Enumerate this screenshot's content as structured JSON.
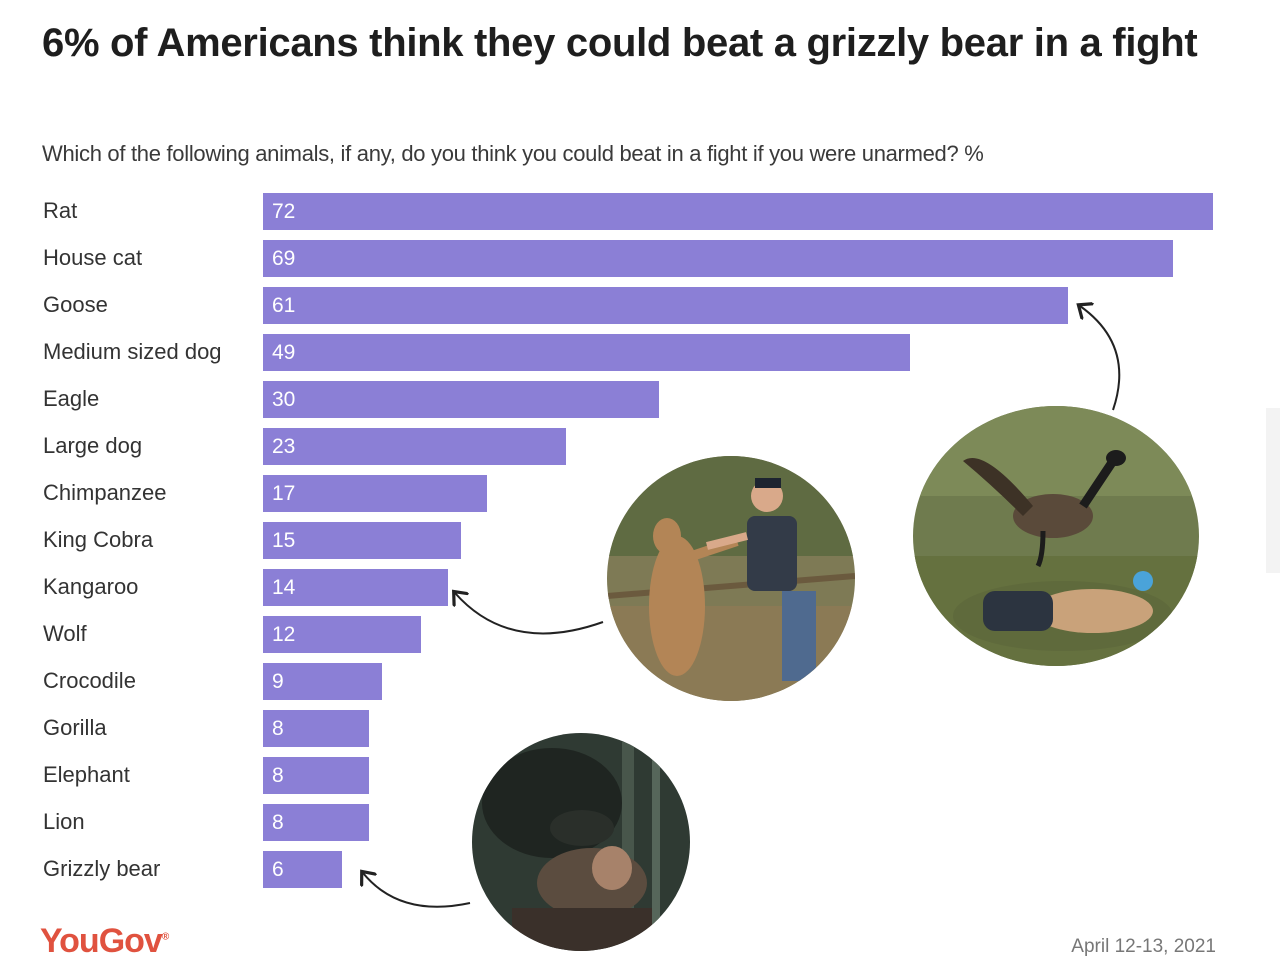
{
  "title": "6% of Americans think they could beat a grizzly bear in a fight",
  "subtitle": "Which of the following animals, if any, do you think you could beat in a fight if you were unarmed? %",
  "brand": {
    "logo_text": "YouGov",
    "logo_color": "#e0523f"
  },
  "date": "April 12-13, 2021",
  "colors": {
    "bar": "#8b7fd6",
    "value_text": "#ffffff"
  },
  "photos": [
    "goose-attack-photo",
    "kangaroo-fight-photo",
    "bear-attack-photo"
  ],
  "chart_data": {
    "type": "bar",
    "orientation": "horizontal",
    "title": "6% of Americans think they could beat a grizzly bear in a fight",
    "subtitle": "Which of the following animals, if any, do you think you could beat in a fight if you were unarmed? %",
    "xlim": [
      0,
      72
    ],
    "grid": false,
    "categories": [
      "Rat",
      "House cat",
      "Goose",
      "Medium sized dog",
      "Eagle",
      "Large dog",
      "Chimpanzee",
      "King Cobra",
      "Kangaroo",
      "Wolf",
      "Crocodile",
      "Gorilla",
      "Elephant",
      "Lion",
      "Grizzly bear"
    ],
    "values": [
      72,
      69,
      61,
      49,
      30,
      23,
      17,
      15,
      14,
      12,
      9,
      8,
      8,
      8,
      6
    ]
  }
}
